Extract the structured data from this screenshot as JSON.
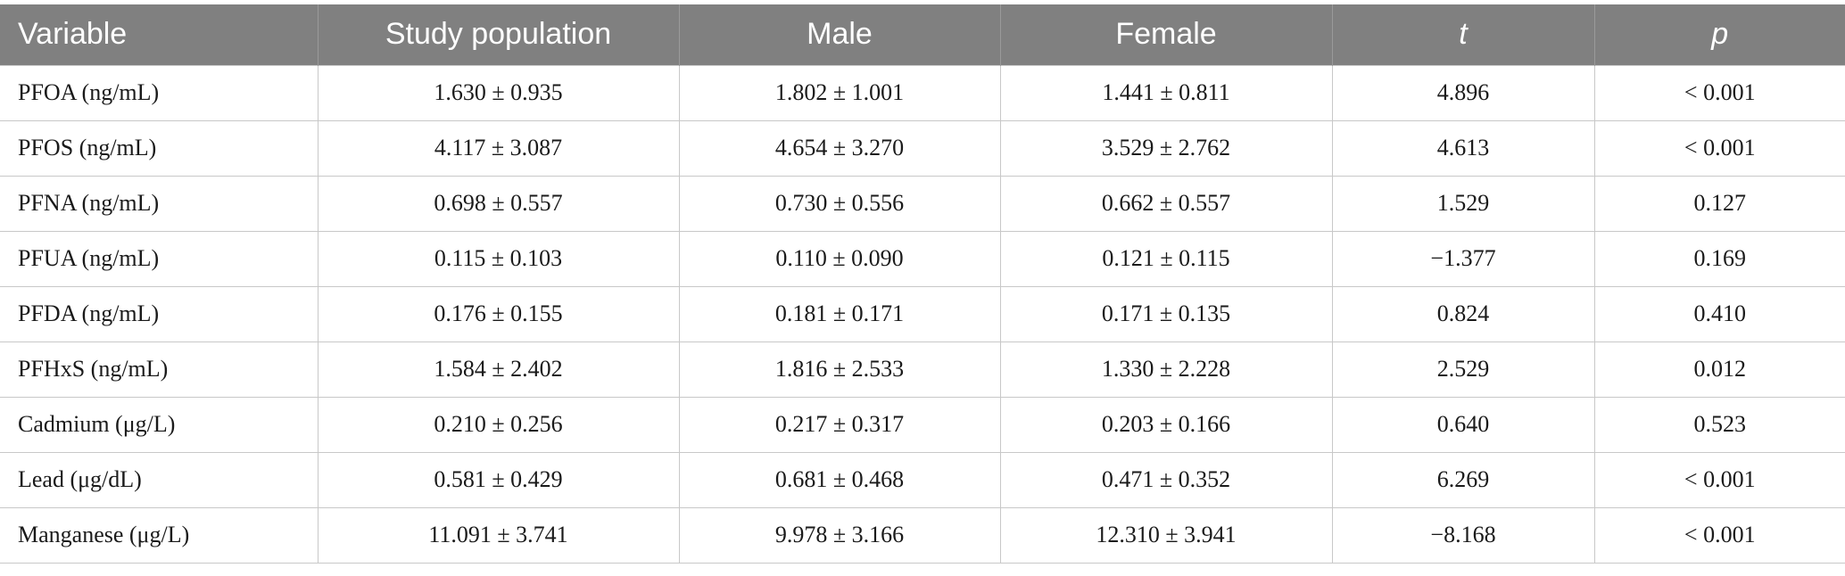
{
  "table": {
    "headers": [
      "Variable",
      "Study population",
      "Male",
      "Female",
      "t",
      "p"
    ],
    "rows": [
      [
        "PFOA (ng/mL)",
        "1.630 ± 0.935",
        "1.802 ± 1.001",
        "1.441 ± 0.811",
        "4.896",
        "< 0.001"
      ],
      [
        "PFOS (ng/mL)",
        "4.117 ± 3.087",
        "4.654 ± 3.270",
        "3.529 ± 2.762",
        "4.613",
        "< 0.001"
      ],
      [
        "PFNA (ng/mL)",
        "0.698 ± 0.557",
        "0.730 ± 0.556",
        "0.662 ± 0.557",
        "1.529",
        "0.127"
      ],
      [
        "PFUA (ng/mL)",
        "0.115 ± 0.103",
        "0.110 ± 0.090",
        "0.121 ± 0.115",
        "−1.377",
        "0.169"
      ],
      [
        "PFDA (ng/mL)",
        "0.176 ± 0.155",
        "0.181 ± 0.171",
        "0.171 ± 0.135",
        "0.824",
        "0.410"
      ],
      [
        "PFHxS (ng/mL)",
        "1.584 ± 2.402",
        "1.816 ± 2.533",
        "1.330 ± 2.228",
        "2.529",
        "0.012"
      ],
      [
        "Cadmium (μg/L)",
        "0.210 ± 0.256",
        "0.217 ± 0.317",
        "0.203 ± 0.166",
        "0.640",
        "0.523"
      ],
      [
        "Lead (μg/dL)",
        "0.581 ± 0.429",
        "0.681 ± 0.468",
        "0.471 ± 0.352",
        "6.269",
        "< 0.001"
      ],
      [
        "Manganese (μg/L)",
        "11.091 ± 3.741",
        "9.978 ± 3.166",
        "12.310 ± 3.941",
        "−8.168",
        "< 0.001"
      ]
    ]
  },
  "colors": {
    "header_bg": "#808080",
    "header_text": "#ffffff",
    "grid": "#c8c8c8"
  }
}
